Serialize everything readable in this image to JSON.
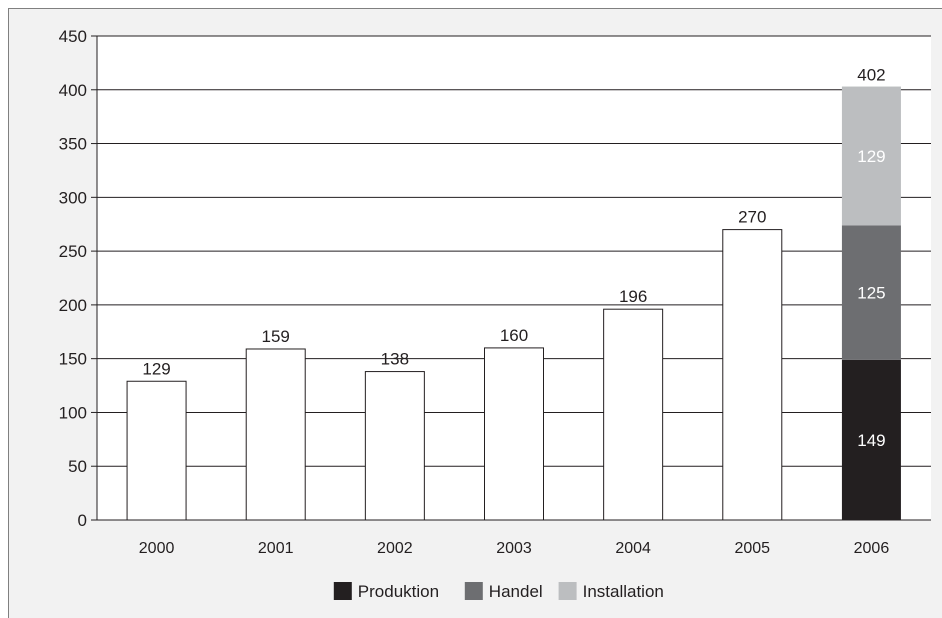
{
  "chart_data": {
    "type": "bar",
    "title": "",
    "xlabel": "",
    "ylabel": "",
    "ylim": [
      0,
      450
    ],
    "yticks": [
      0,
      50,
      100,
      150,
      200,
      250,
      300,
      350,
      400,
      450
    ],
    "grid": true,
    "legend_position": "bottom-center",
    "categories": [
      "2000",
      "2001",
      "2002",
      "2003",
      "2004",
      "2005",
      "2006"
    ],
    "totals": [
      129,
      159,
      138,
      160,
      196,
      270,
      402
    ],
    "total_labels": [
      "129",
      "159",
      "138",
      "160",
      "196",
      "270",
      "402"
    ],
    "stacked_segments": {
      "category": "2006",
      "segments": [
        {
          "name": "Produktion",
          "value": 149,
          "label": "149",
          "color": "#231f20",
          "label_color": "#ffffff"
        },
        {
          "name": "Handel",
          "value": 125,
          "label": "125",
          "color": "#6d6e71",
          "label_color": "#ffffff"
        },
        {
          "name": "Installation",
          "value": 129,
          "label": "129",
          "color": "#bcbec0",
          "label_color": "#ffffff"
        }
      ]
    },
    "legend": [
      {
        "label": "Produktion",
        "color": "#231f20"
      },
      {
        "label": "Handel",
        "color": "#6d6e71"
      },
      {
        "label": "Installation",
        "color": "#bcbec0"
      }
    ],
    "colors": {
      "plain_bar": "#ffffff",
      "bar_stroke": "#231f20",
      "grid": "#231f20",
      "text": "#231f20"
    }
  }
}
